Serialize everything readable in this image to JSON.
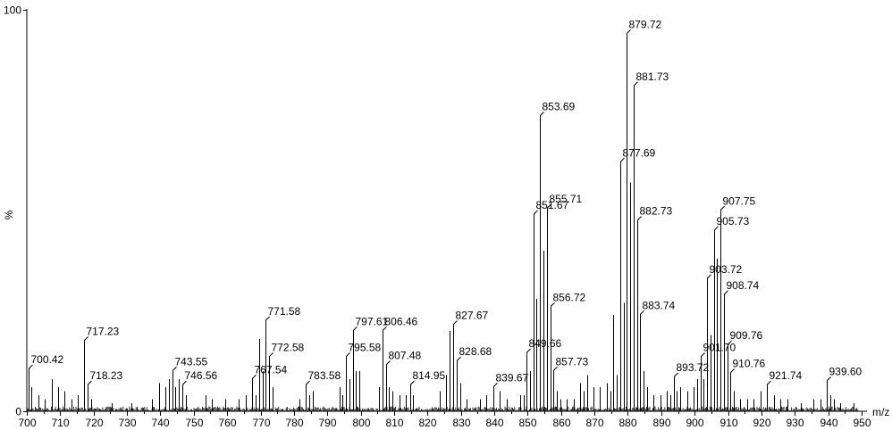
{
  "chart_data": {
    "type": "bar",
    "x_unit_label": "m/z",
    "y_unit_label": "%",
    "xlim": [
      700,
      950
    ],
    "ylim": [
      0,
      100
    ],
    "x_ticks": [
      700,
      710,
      720,
      730,
      740,
      750,
      760,
      770,
      780,
      790,
      800,
      810,
      820,
      830,
      840,
      850,
      860,
      870,
      880,
      890,
      900,
      910,
      920,
      930,
      940,
      950
    ],
    "y_ticks": [
      0,
      100
    ],
    "peaks": [
      {
        "x": 700.42,
        "y": 10,
        "label": "700.42"
      },
      {
        "x": 717.23,
        "y": 17,
        "label": "717.23"
      },
      {
        "x": 718.23,
        "y": 6,
        "label": "718.23"
      },
      {
        "x": 743.55,
        "y": 9.5,
        "label": "743.55"
      },
      {
        "x": 746.56,
        "y": 6,
        "label": "746.56"
      },
      {
        "x": 767.54,
        "y": 7.5,
        "label": "767.54"
      },
      {
        "x": 771.58,
        "y": 22,
        "label": "771.58"
      },
      {
        "x": 772.58,
        "y": 13,
        "label": "772.58"
      },
      {
        "x": 783.58,
        "y": 6,
        "label": "783.58"
      },
      {
        "x": 795.58,
        "y": 13,
        "label": "795.58"
      },
      {
        "x": 797.61,
        "y": 19.5,
        "label": "797.61"
      },
      {
        "x": 806.46,
        "y": 19.5,
        "label": "806.46"
      },
      {
        "x": 807.48,
        "y": 11,
        "label": "807.48"
      },
      {
        "x": 814.95,
        "y": 6,
        "label": "814.95"
      },
      {
        "x": 827.67,
        "y": 21,
        "label": "827.67"
      },
      {
        "x": 828.68,
        "y": 12,
        "label": "828.68"
      },
      {
        "x": 839.67,
        "y": 5.5,
        "label": "839.67"
      },
      {
        "x": 849.66,
        "y": 14,
        "label": "849.66"
      },
      {
        "x": 851.67,
        "y": 48.5,
        "label": "851.67"
      },
      {
        "x": 853.69,
        "y": 73,
        "label": "853.69"
      },
      {
        "x": 855.71,
        "y": 50,
        "label": "855.71"
      },
      {
        "x": 856.72,
        "y": 25.5,
        "label": "856.72"
      },
      {
        "x": 857.73,
        "y": 9.5,
        "label": "857.73"
      },
      {
        "x": 877.69,
        "y": 61.5,
        "label": "877.69"
      },
      {
        "x": 879.72,
        "y": 93.5,
        "label": "879.72"
      },
      {
        "x": 881.73,
        "y": 80.5,
        "label": "881.73"
      },
      {
        "x": 882.73,
        "y": 47,
        "label": "882.73"
      },
      {
        "x": 883.74,
        "y": 23.5,
        "label": "883.74"
      },
      {
        "x": 893.72,
        "y": 8,
        "label": "893.72"
      },
      {
        "x": 901.7,
        "y": 13,
        "label": "901.70"
      },
      {
        "x": 903.72,
        "y": 32.5,
        "label": "903.72"
      },
      {
        "x": 905.73,
        "y": 44.5,
        "label": "905.73"
      },
      {
        "x": 907.75,
        "y": 49.5,
        "label": "907.75"
      },
      {
        "x": 908.74,
        "y": 28.5,
        "label": "908.74"
      },
      {
        "x": 909.76,
        "y": 16,
        "label": "909.76"
      },
      {
        "x": 910.76,
        "y": 9,
        "label": "910.76"
      },
      {
        "x": 921.74,
        "y": 6,
        "label": "921.74"
      },
      {
        "x": 939.6,
        "y": 7,
        "label": "939.60"
      }
    ],
    "minor_peaks": [
      [
        701.4,
        6
      ],
      [
        703.5,
        4
      ],
      [
        705.3,
        3
      ],
      [
        707.4,
        8
      ],
      [
        709.4,
        6
      ],
      [
        711.3,
        5
      ],
      [
        713.4,
        3
      ],
      [
        715.3,
        4
      ],
      [
        719.2,
        3
      ],
      [
        725.4,
        2
      ],
      [
        731.4,
        2
      ],
      [
        737.5,
        3
      ],
      [
        739.5,
        7
      ],
      [
        741.5,
        6
      ],
      [
        742.5,
        8
      ],
      [
        744.5,
        6
      ],
      [
        745.5,
        8
      ],
      [
        747.6,
        4
      ],
      [
        753.5,
        4
      ],
      [
        755.5,
        3
      ],
      [
        759.5,
        3
      ],
      [
        763.5,
        3
      ],
      [
        765.5,
        4
      ],
      [
        768.5,
        4
      ],
      [
        769.6,
        18
      ],
      [
        770.6,
        10
      ],
      [
        773.6,
        6
      ],
      [
        781.6,
        3
      ],
      [
        784.6,
        4
      ],
      [
        785.6,
        5
      ],
      [
        793.6,
        6
      ],
      [
        794.6,
        4
      ],
      [
        796.6,
        8
      ],
      [
        798.6,
        10
      ],
      [
        799.6,
        10
      ],
      [
        805.5,
        6
      ],
      [
        808.5,
        6
      ],
      [
        809.5,
        5
      ],
      [
        811.5,
        4
      ],
      [
        813.5,
        4
      ],
      [
        815.5,
        4
      ],
      [
        823.6,
        5
      ],
      [
        825.6,
        9
      ],
      [
        826.6,
        20
      ],
      [
        829.7,
        7
      ],
      [
        831.7,
        3
      ],
      [
        835.7,
        3
      ],
      [
        837.7,
        4
      ],
      [
        841.7,
        5
      ],
      [
        843.7,
        3
      ],
      [
        847.7,
        4
      ],
      [
        848.7,
        4
      ],
      [
        850.7,
        10
      ],
      [
        852.7,
        28
      ],
      [
        854.7,
        40
      ],
      [
        858.7,
        5
      ],
      [
        859.7,
        3
      ],
      [
        861.7,
        3
      ],
      [
        863.7,
        3
      ],
      [
        865.7,
        7
      ],
      [
        866.7,
        5
      ],
      [
        867.7,
        9
      ],
      [
        869.7,
        6
      ],
      [
        871.7,
        6
      ],
      [
        873.7,
        7
      ],
      [
        874.7,
        5
      ],
      [
        875.7,
        24
      ],
      [
        876.7,
        9
      ],
      [
        878.7,
        27
      ],
      [
        880.7,
        57
      ],
      [
        884.7,
        10
      ],
      [
        885.7,
        6
      ],
      [
        887.7,
        4
      ],
      [
        889.7,
        4
      ],
      [
        891.7,
        5
      ],
      [
        892.7,
        4
      ],
      [
        894.7,
        5
      ],
      [
        895.7,
        6
      ],
      [
        897.7,
        5
      ],
      [
        899.7,
        6
      ],
      [
        900.7,
        8
      ],
      [
        902.7,
        8
      ],
      [
        904.7,
        19
      ],
      [
        906.7,
        38
      ],
      [
        911.7,
        5
      ],
      [
        913.7,
        3
      ],
      [
        915.7,
        3
      ],
      [
        917.7,
        3
      ],
      [
        919.7,
        5
      ],
      [
        923.7,
        4
      ],
      [
        925.7,
        3
      ],
      [
        927.7,
        3
      ],
      [
        931.7,
        2
      ],
      [
        935.6,
        3
      ],
      [
        937.6,
        3
      ],
      [
        940.6,
        4
      ],
      [
        941.6,
        3
      ],
      [
        943.6,
        2
      ],
      [
        947.6,
        2
      ]
    ]
  }
}
